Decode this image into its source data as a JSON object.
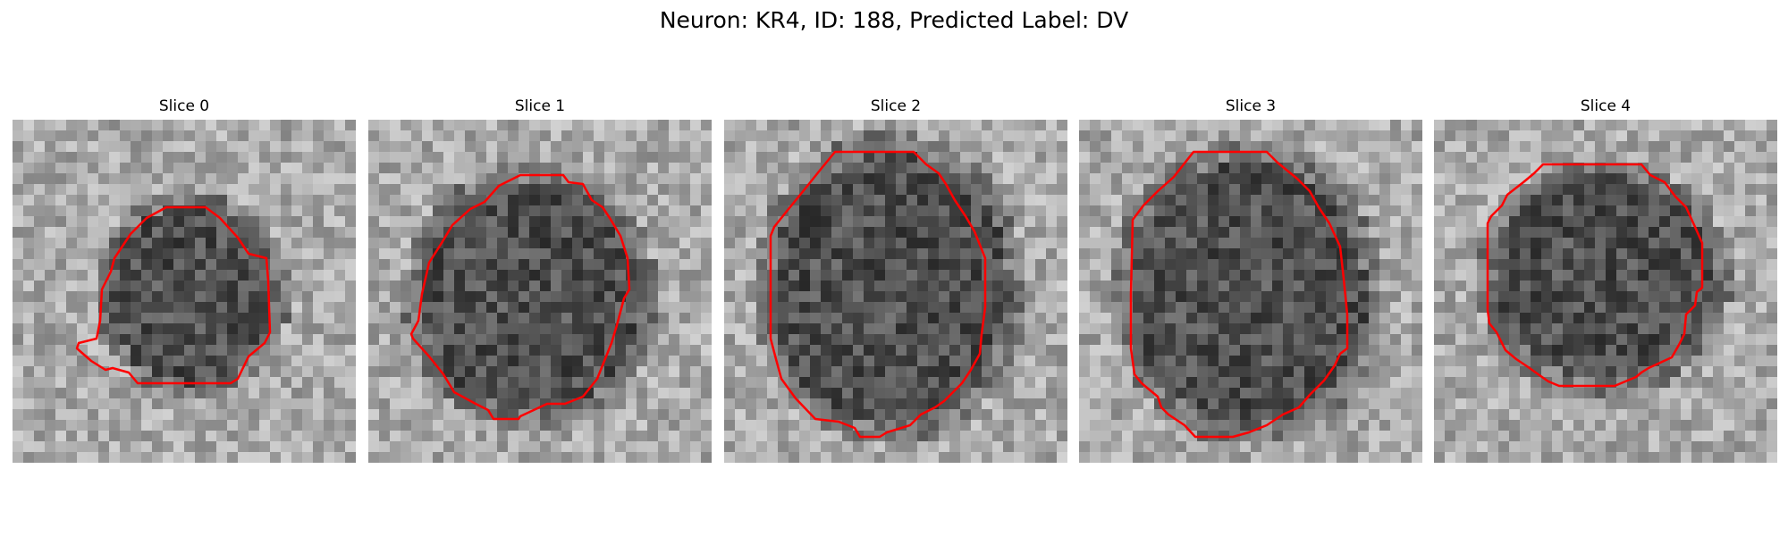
{
  "figure": {
    "title": "Neuron: KR4, ID: 188, Predicted Label: DV"
  },
  "panels": [
    {
      "title": "Slice 0",
      "image": "grayscale-microscopy-slice",
      "outline_color": "#ff0000"
    },
    {
      "title": "Slice 1",
      "image": "grayscale-microscopy-slice",
      "outline_color": "#ff0000"
    },
    {
      "title": "Slice 2",
      "image": "grayscale-microscopy-slice",
      "outline_color": "#ff0000"
    },
    {
      "title": "Slice 3",
      "image": "grayscale-microscopy-slice",
      "outline_color": "#ff0000"
    },
    {
      "title": "Slice 4",
      "image": "grayscale-microscopy-slice",
      "outline_color": "#ff0000"
    }
  ]
}
